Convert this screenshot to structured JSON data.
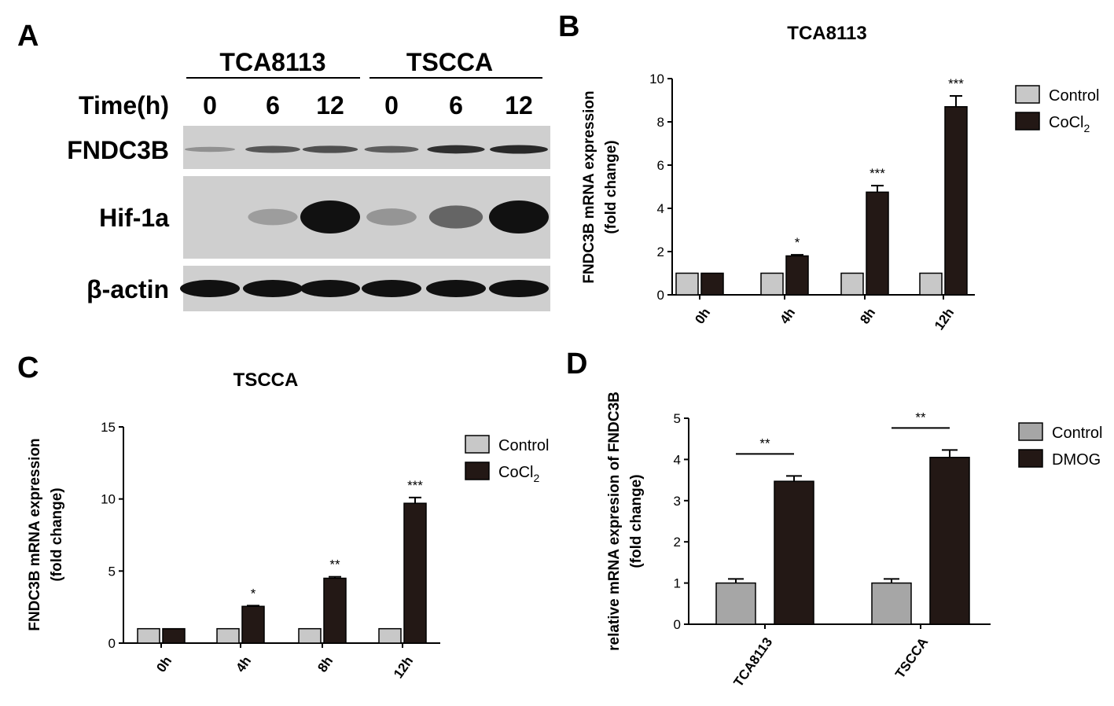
{
  "panels": {
    "A": {
      "letter": "A",
      "cell_lines": [
        "TCA8113",
        "TSCCA"
      ],
      "time_label": "Time(h)",
      "times": [
        "0",
        "6",
        "12",
        "0",
        "6",
        "12"
      ],
      "rows": [
        {
          "label": "FNDC3B",
          "intensity": [
            0.15,
            0.55,
            0.6,
            0.5,
            0.8,
            0.85
          ]
        },
        {
          "label": "Hif-1a",
          "intensity": [
            0.0,
            0.08,
            1.0,
            0.12,
            0.45,
            1.0
          ]
        },
        {
          "label": "β-actin",
          "intensity": [
            1.0,
            1.0,
            1.0,
            1.0,
            1.0,
            1.0
          ]
        }
      ]
    },
    "B": {
      "letter": "B"
    },
    "C": {
      "letter": "C"
    },
    "D": {
      "letter": "D"
    }
  },
  "colors": {
    "control": "#c8c8c8",
    "control_D": "#a6a6a6",
    "treated": "#231815",
    "blot_bg": "#cfcfcf",
    "band": "#111111"
  },
  "chart_data": [
    {
      "panel": "B",
      "type": "bar",
      "title": "TCA8113",
      "ylabel_lines": [
        "FNDC3B mRNA expression",
        "(fold change)"
      ],
      "xlabel": "",
      "categories": [
        "0h",
        "4h",
        "8h",
        "12h"
      ],
      "ylim": [
        0,
        10
      ],
      "yticks": [
        "0",
        "2",
        "4",
        "6",
        "8",
        "10"
      ],
      "series": [
        {
          "name": "Control",
          "values": [
            1.0,
            1.0,
            1.0,
            1.0
          ],
          "errors": [
            0,
            0,
            0,
            0
          ]
        },
        {
          "name": "CoCl",
          "name_sub": "2",
          "values": [
            1.0,
            1.8,
            4.75,
            8.7
          ],
          "errors": [
            0,
            0.05,
            0.3,
            0.5
          ]
        }
      ],
      "annotations": [
        "",
        "*",
        "***",
        "***"
      ],
      "legend": "right"
    },
    {
      "panel": "C",
      "type": "bar",
      "title": "TSCCA",
      "ylabel_lines": [
        "FNDC3B mRNA expression",
        "(fold change)"
      ],
      "xlabel": "",
      "categories": [
        "0h",
        "4h",
        "8h",
        "12h"
      ],
      "ylim": [
        0,
        15
      ],
      "yticks": [
        "0",
        "5",
        "10",
        "15"
      ],
      "series": [
        {
          "name": "Control",
          "values": [
            1.0,
            1.0,
            1.0,
            1.0
          ],
          "errors": [
            0,
            0,
            0,
            0
          ]
        },
        {
          "name": "CoCl",
          "name_sub": "2",
          "values": [
            1.0,
            2.55,
            4.5,
            9.7
          ],
          "errors": [
            0,
            0.05,
            0.1,
            0.4
          ]
        }
      ],
      "annotations": [
        "",
        "*",
        "**",
        "***"
      ],
      "legend": "right"
    },
    {
      "panel": "D",
      "type": "bar",
      "title": "",
      "ylabel_lines": [
        "relative mRNA expresion of FNDC3B",
        "(fold change)"
      ],
      "xlabel": "",
      "categories": [
        "TCA8113",
        "TSCCA"
      ],
      "ylim": [
        0,
        5
      ],
      "yticks": [
        "0",
        "1",
        "2",
        "3",
        "4",
        "5"
      ],
      "series": [
        {
          "name": "Control",
          "values": [
            1.0,
            1.0
          ],
          "errors": [
            0.1,
            0.1
          ]
        },
        {
          "name": "DMOG",
          "values": [
            3.47,
            4.05
          ],
          "errors": [
            0.13,
            0.18
          ]
        }
      ],
      "annotations": [
        "**",
        "**"
      ],
      "legend": "right"
    }
  ]
}
